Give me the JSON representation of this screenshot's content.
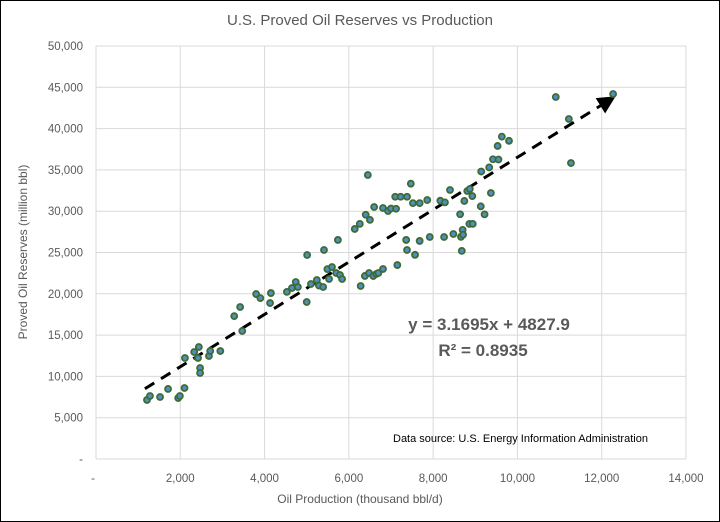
{
  "chart_data": {
    "type": "scatter",
    "title": "U.S. Proved Oil Reserves vs Production",
    "xlabel": "Oil Production (thousand bbl/d)",
    "ylabel": "Proved Oil Reserves (million bbl)",
    "xlim": [
      0,
      14000
    ],
    "ylim": [
      0,
      50000
    ],
    "x_ticks": [
      0,
      2000,
      4000,
      6000,
      8000,
      10000,
      12000,
      14000
    ],
    "x_tick_labels": [
      "-",
      "2,000",
      "4,000",
      "6,000",
      "8,000",
      "10,000",
      "12,000",
      "14,000"
    ],
    "y_ticks": [
      0,
      5000,
      10000,
      15000,
      20000,
      25000,
      30000,
      35000,
      40000,
      45000,
      50000
    ],
    "y_tick_labels": [
      "-",
      "5,000",
      "10,000",
      "15,000",
      "20,000",
      "25,000",
      "30,000",
      "35,000",
      "40,000",
      "45,000",
      "50,000"
    ],
    "grid": true,
    "marker_colors": {
      "edge": "#3e6b35",
      "fill": "#4f8fbf"
    },
    "trendline": {
      "type": "linear",
      "slope": 3.1695,
      "intercept": 4827.9,
      "x_range": [
        1160,
        12270
      ],
      "style": "dashed-arrow",
      "color": "#000000"
    },
    "equation_label": "y = 3.1695x + 4827.9",
    "r2_label": "R² = 0.8935",
    "annotation": "Data source: U.S. Energy Information Administration",
    "points": [
      [
        1210,
        7150
      ],
      [
        1280,
        7630
      ],
      [
        1520,
        7510
      ],
      [
        1710,
        8480
      ],
      [
        1950,
        7380
      ],
      [
        1990,
        7630
      ],
      [
        2100,
        8600
      ],
      [
        2110,
        12230
      ],
      [
        2330,
        12950
      ],
      [
        2420,
        12230
      ],
      [
        2440,
        13560
      ],
      [
        2470,
        11020
      ],
      [
        2470,
        10410
      ],
      [
        2680,
        12470
      ],
      [
        2710,
        13080
      ],
      [
        2950,
        13070
      ],
      [
        3280,
        17300
      ],
      [
        3420,
        18400
      ],
      [
        3470,
        15500
      ],
      [
        3800,
        19970
      ],
      [
        3900,
        19480
      ],
      [
        4130,
        18880
      ],
      [
        4150,
        20090
      ],
      [
        4530,
        20230
      ],
      [
        4650,
        20700
      ],
      [
        4740,
        21430
      ],
      [
        4790,
        20820
      ],
      [
        5000,
        19010
      ],
      [
        5010,
        24700
      ],
      [
        5100,
        21190
      ],
      [
        5240,
        21670
      ],
      [
        5290,
        21000
      ],
      [
        5390,
        20820
      ],
      [
        5410,
        25300
      ],
      [
        5490,
        22990
      ],
      [
        5600,
        23240
      ],
      [
        5530,
        21790
      ],
      [
        5700,
        22520
      ],
      [
        5790,
        22280
      ],
      [
        5840,
        21790
      ],
      [
        5740,
        26520
      ],
      [
        6280,
        20940
      ],
      [
        6380,
        22160
      ],
      [
        6480,
        22520
      ],
      [
        6580,
        22150
      ],
      [
        6650,
        22400
      ],
      [
        6700,
        22520
      ],
      [
        6810,
        23000
      ],
      [
        6140,
        27850
      ],
      [
        6260,
        28470
      ],
      [
        6400,
        29570
      ],
      [
        6500,
        28950
      ],
      [
        6600,
        30510
      ],
      [
        6810,
        30390
      ],
      [
        6930,
        30030
      ],
      [
        6450,
        34380
      ],
      [
        7100,
        31750
      ],
      [
        7230,
        31750
      ],
      [
        7380,
        31750
      ],
      [
        7470,
        33330
      ],
      [
        7520,
        30980
      ],
      [
        7680,
        30980
      ],
      [
        7860,
        31350
      ],
      [
        7000,
        30330
      ],
      [
        7120,
        30300
      ],
      [
        7150,
        23480
      ],
      [
        7380,
        25300
      ],
      [
        7570,
        24720
      ],
      [
        7680,
        26400
      ],
      [
        7360,
        26520
      ],
      [
        7920,
        26880
      ],
      [
        8170,
        31270
      ],
      [
        8280,
        31070
      ],
      [
        8400,
        32570
      ],
      [
        8640,
        29630
      ],
      [
        8740,
        31240
      ],
      [
        8810,
        32450
      ],
      [
        8870,
        32690
      ],
      [
        8930,
        31830
      ],
      [
        8700,
        27740
      ],
      [
        8660,
        26900
      ],
      [
        8710,
        27150
      ],
      [
        8480,
        27240
      ],
      [
        8260,
        26880
      ],
      [
        8680,
        25200
      ],
      [
        8860,
        28460
      ],
      [
        8940,
        28470
      ],
      [
        9130,
        30590
      ],
      [
        9220,
        29620
      ],
      [
        9370,
        32200
      ],
      [
        9420,
        36290
      ],
      [
        9630,
        39030
      ],
      [
        9800,
        38520
      ],
      [
        9140,
        34800
      ],
      [
        9530,
        37900
      ],
      [
        9550,
        36260
      ],
      [
        9330,
        35300
      ],
      [
        10910,
        43830
      ],
      [
        11220,
        41160
      ],
      [
        11270,
        35830
      ],
      [
        12270,
        44190
      ]
    ]
  }
}
